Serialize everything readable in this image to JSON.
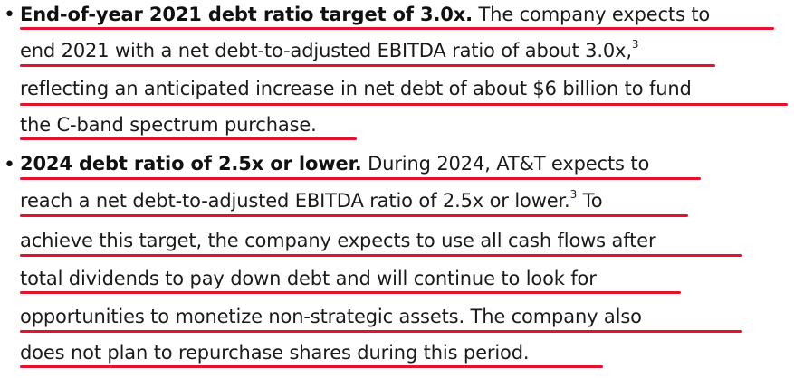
{
  "colors": {
    "text": "#1a1a1a",
    "underline": "#e2142d"
  },
  "bullets": [
    {
      "marker": "•",
      "lines": [
        {
          "bold": "End-of-year 2021 debt ratio target of 3.0x.",
          "text": " The company expects to"
        },
        {
          "text": "end 2021 with a net debt-to-adjusted EBITDA ratio of about 3.0x,",
          "sup": "3"
        },
        {
          "text": "reflecting an anticipated increase in net debt of about $6 billion to fund"
        },
        {
          "text": "the C-band spectrum purchase."
        }
      ]
    },
    {
      "marker": "•",
      "lines": [
        {
          "bold": "2024 debt ratio of 2.5x or lower.",
          "text": " During 2024, AT&T expects to"
        },
        {
          "text": "reach a net debt-to-adjusted EBITDA ratio of 2.5x or lower.",
          "sup": "3",
          "tail": " To"
        },
        {
          "text": "achieve this target, the company expects to use all cash flows after"
        },
        {
          "text": "total dividends to pay down debt and will continue to look for"
        },
        {
          "text": "opportunities to monetize non-strategic assets. The company also"
        },
        {
          "text": "does not plan to repurchase shares during this period."
        }
      ]
    }
  ]
}
